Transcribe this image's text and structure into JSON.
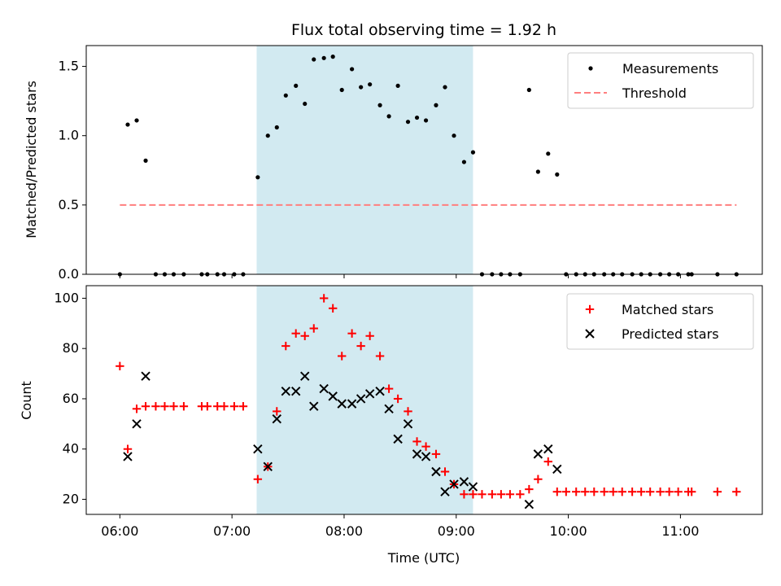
{
  "chart_data": [
    {
      "type": "scatter",
      "title": "Flux total observing time = 1.92 h",
      "ylabel": "Matched/Predicted stars",
      "xlabel": "",
      "x_unit": "hours (UTC)",
      "xlim": [
        5.7,
        11.73
      ],
      "ylim": [
        0,
        1.65
      ],
      "yticks": [
        0.0,
        0.5,
        1.0,
        1.5
      ],
      "ytick_labels": [
        "0.0",
        "0.5",
        "1.0",
        "1.5"
      ],
      "shaded_span": [
        7.22,
        9.15
      ],
      "shaded_color": "#add8e6",
      "legend_position": "upper-right",
      "grid": false,
      "series": [
        {
          "name": "Measurements",
          "marker": "dot",
          "color": "#000000",
          "x": [
            6.0,
            6.07,
            6.15,
            6.23,
            6.32,
            6.4,
            6.48,
            6.57,
            6.73,
            6.78,
            6.87,
            6.93,
            7.02,
            7.1,
            7.23,
            7.32,
            7.4,
            7.48,
            7.57,
            7.65,
            7.73,
            7.82,
            7.9,
            7.98,
            8.07,
            8.15,
            8.23,
            8.32,
            8.4,
            8.48,
            8.57,
            8.65,
            8.73,
            8.82,
            8.9,
            8.98,
            9.07,
            9.15,
            9.23,
            9.32,
            9.4,
            9.48,
            9.57,
            9.65,
            9.73,
            9.82,
            9.9,
            9.98,
            10.07,
            10.15,
            10.23,
            10.32,
            10.4,
            10.48,
            10.57,
            10.65,
            10.73,
            10.82,
            10.9,
            10.98,
            11.07,
            11.1,
            11.33,
            11.5
          ],
          "y": [
            0.0,
            1.08,
            1.11,
            0.82,
            0.0,
            0.0,
            0.0,
            0.0,
            0.0,
            0.0,
            0.0,
            0.0,
            0.0,
            0.0,
            0.7,
            1.0,
            1.06,
            1.29,
            1.36,
            1.23,
            1.55,
            1.56,
            1.57,
            1.33,
            1.48,
            1.35,
            1.37,
            1.22,
            1.14,
            1.36,
            1.1,
            1.13,
            1.11,
            1.22,
            1.35,
            1.0,
            0.81,
            0.88,
            0.0,
            0.0,
            0.0,
            0.0,
            0.0,
            1.33,
            0.74,
            0.87,
            0.72,
            0.0,
            0.0,
            0.0,
            0.0,
            0.0,
            0.0,
            0.0,
            0.0,
            0.0,
            0.0,
            0.0,
            0.0,
            0.0,
            0.0,
            0.0,
            0.0,
            0.0
          ]
        },
        {
          "name": "Threshold",
          "marker": "dashed-line",
          "color": "#ff7f7f",
          "x": [
            6.0,
            11.5
          ],
          "y": [
            0.5,
            0.5
          ]
        }
      ]
    },
    {
      "type": "scatter",
      "title": "",
      "xlabel": "Time (UTC)",
      "ylabel": "Count",
      "x_unit": "hours (UTC)",
      "xlim": [
        5.7,
        11.73
      ],
      "ylim": [
        14,
        105
      ],
      "yticks": [
        20,
        40,
        60,
        80,
        100
      ],
      "ytick_labels": [
        "20",
        "40",
        "60",
        "80",
        "100"
      ],
      "xticks": [
        6,
        7,
        8,
        9,
        10,
        11
      ],
      "xtick_labels": [
        "06:00",
        "07:00",
        "08:00",
        "09:00",
        "10:00",
        "11:00"
      ],
      "shaded_span": [
        7.22,
        9.15
      ],
      "shaded_color": "#add8e6",
      "legend_position": "upper-right",
      "grid": false,
      "series": [
        {
          "name": "Matched stars",
          "marker": "plus",
          "color": "#ff0000",
          "x": [
            6.0,
            6.07,
            6.15,
            6.23,
            6.32,
            6.4,
            6.48,
            6.57,
            6.73,
            6.78,
            6.87,
            6.93,
            7.02,
            7.1,
            7.23,
            7.32,
            7.4,
            7.48,
            7.57,
            7.65,
            7.73,
            7.82,
            7.9,
            7.98,
            8.07,
            8.15,
            8.23,
            8.32,
            8.4,
            8.48,
            8.57,
            8.65,
            8.73,
            8.82,
            8.9,
            8.98,
            9.07,
            9.15,
            9.23,
            9.32,
            9.4,
            9.48,
            9.57,
            9.65,
            9.73,
            9.82,
            9.9,
            9.98,
            10.07,
            10.15,
            10.23,
            10.32,
            10.4,
            10.48,
            10.57,
            10.65,
            10.73,
            10.82,
            10.9,
            10.98,
            11.07,
            11.1,
            11.33,
            11.5
          ],
          "y": [
            73,
            40,
            56,
            57,
            57,
            57,
            57,
            57,
            57,
            57,
            57,
            57,
            57,
            57,
            28,
            33,
            55,
            81,
            86,
            85,
            88,
            100,
            96,
            77,
            86,
            81,
            85,
            77,
            64,
            60,
            55,
            43,
            41,
            38,
            31,
            26,
            22,
            22,
            22,
            22,
            22,
            22,
            22,
            24,
            28,
            35,
            23,
            23,
            23,
            23,
            23,
            23,
            23,
            23,
            23,
            23,
            23,
            23,
            23,
            23,
            23,
            23,
            23,
            23
          ]
        },
        {
          "name": "Predicted stars",
          "marker": "x",
          "color": "#000000",
          "x": [
            6.07,
            6.15,
            6.23,
            7.23,
            7.32,
            7.4,
            7.48,
            7.57,
            7.65,
            7.73,
            7.82,
            7.9,
            7.98,
            8.07,
            8.15,
            8.23,
            8.32,
            8.4,
            8.48,
            8.57,
            8.65,
            8.73,
            8.82,
            8.9,
            8.98,
            9.07,
            9.15,
            9.65,
            9.73,
            9.82,
            9.9
          ],
          "y": [
            37,
            50,
            69,
            40,
            33,
            52,
            63,
            63,
            69,
            57,
            64,
            61,
            58,
            58,
            60,
            62,
            63,
            56,
            44,
            50,
            38,
            37,
            31,
            23,
            26,
            27,
            25,
            18,
            38,
            40,
            32
          ]
        }
      ]
    }
  ]
}
